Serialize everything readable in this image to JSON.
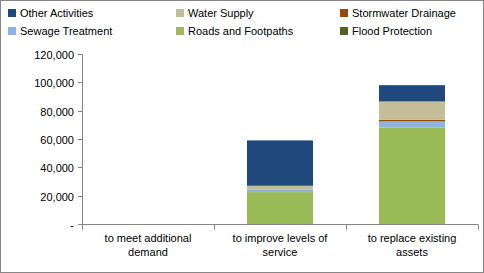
{
  "chart_data": {
    "type": "bar",
    "stacked": true,
    "grid": false,
    "legend": "top",
    "categories": [
      "to meet additional demand",
      "to improve levels of service",
      "to replace existing assets"
    ],
    "series": [
      {
        "name": "Flood Protection",
        "color": "#4F6228",
        "values": [
          0,
          0,
          0
        ]
      },
      {
        "name": "Roads and Footpaths",
        "color": "#9BBB59",
        "values": [
          0,
          22500,
          68000
        ]
      },
      {
        "name": "Sewage Treatment",
        "color": "#8DB3E2",
        "values": [
          0,
          2000,
          4500
        ]
      },
      {
        "name": "Stormwater Drainage",
        "color": "#984807",
        "values": [
          0,
          0,
          1000
        ]
      },
      {
        "name": "Water Supply",
        "color": "#C4BD97",
        "values": [
          0,
          2500,
          13000
        ]
      },
      {
        "name": "Other Activities",
        "color": "#1F497D",
        "values": [
          0,
          32000,
          11500
        ]
      }
    ],
    "ylim": [
      0,
      120000
    ],
    "yticks": [
      {
        "value": 0,
        "label": "-"
      },
      {
        "value": 20000,
        "label": "20,000"
      },
      {
        "value": 40000,
        "label": "40,000"
      },
      {
        "value": 60000,
        "label": "60,000"
      },
      {
        "value": 80000,
        "label": "80,000"
      },
      {
        "value": 100000,
        "label": "100,000"
      },
      {
        "value": 120000,
        "label": "120,000"
      }
    ]
  }
}
